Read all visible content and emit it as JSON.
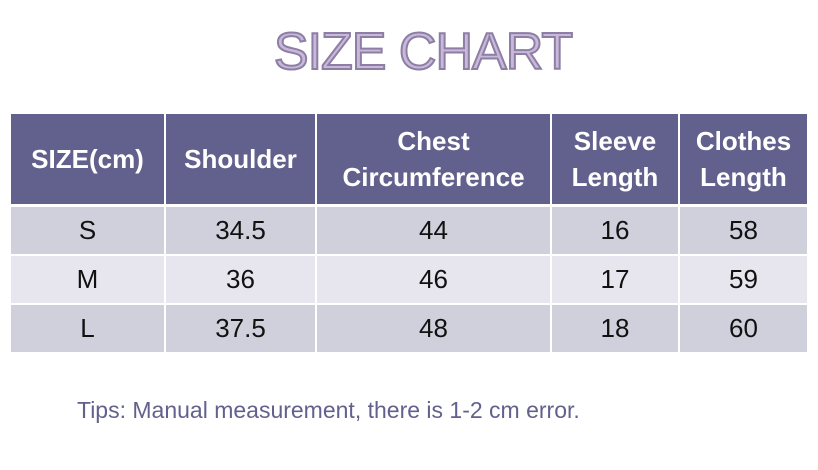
{
  "title": "SIZE CHART",
  "table": {
    "headers": [
      [
        "SIZE(cm)"
      ],
      [
        "Shoulder"
      ],
      [
        "Chest",
        "Circumference"
      ],
      [
        "Sleeve",
        "Length"
      ],
      [
        "Clothes",
        "Length"
      ]
    ],
    "rows": [
      [
        "S",
        "34.5",
        "44",
        "16",
        "58"
      ],
      [
        "M",
        "36",
        "46",
        "17",
        "59"
      ],
      [
        "L",
        "37.5",
        "48",
        "18",
        "60"
      ]
    ]
  },
  "tips": "Tips: Manual measurement, there is 1-2 cm error.",
  "colors": {
    "header_bg": "#62618d",
    "row_dark": "#d0cfdc",
    "row_light": "#e7e6ee",
    "title_fill": "#c9b8dc",
    "tips_text": "#62618d"
  }
}
